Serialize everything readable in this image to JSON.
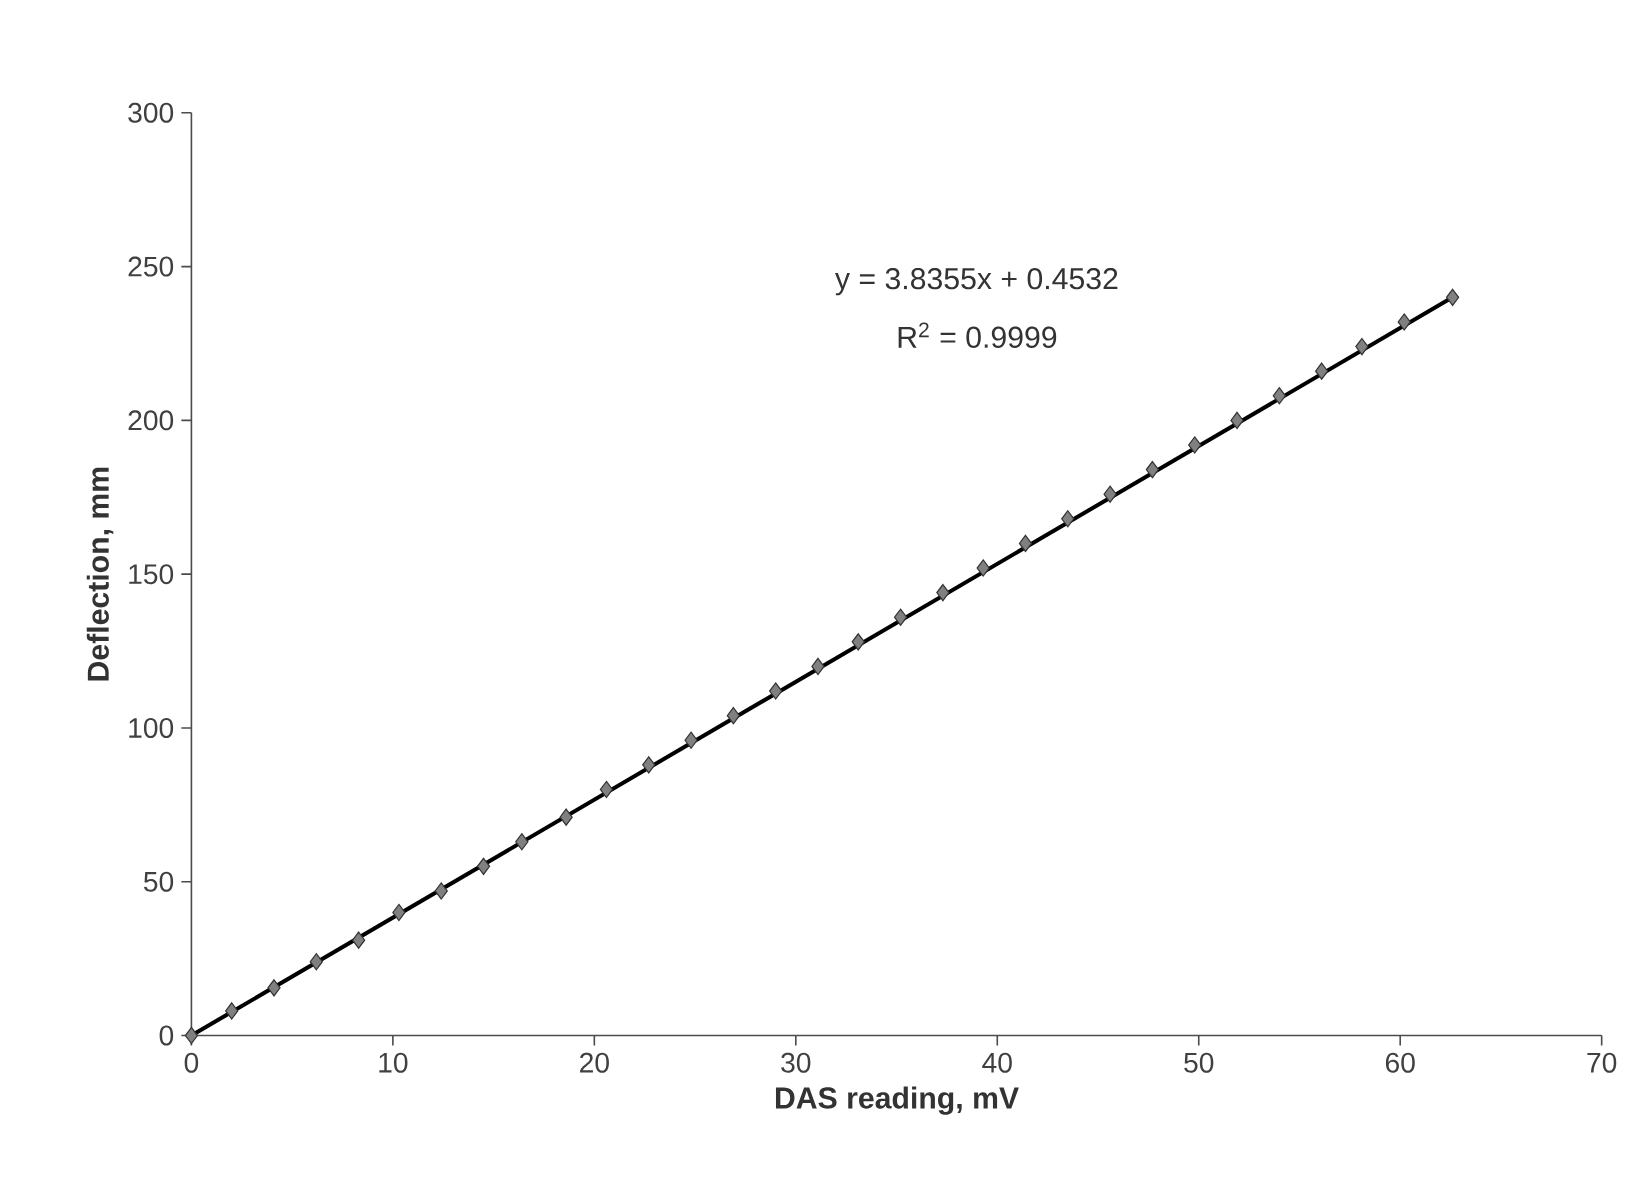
{
  "chart_data": {
    "type": "scatter",
    "xlabel": "DAS reading, mV",
    "ylabel": "Deflection, mm",
    "xlim": [
      0,
      70
    ],
    "ylim": [
      0,
      300
    ],
    "xticks": [
      0,
      10,
      20,
      30,
      40,
      50,
      60,
      70
    ],
    "yticks": [
      0,
      50,
      100,
      150,
      200,
      250,
      300
    ],
    "series": [
      {
        "marker": "diamond",
        "color": "#808080",
        "x": [
          0,
          2.0,
          4.1,
          6.2,
          8.3,
          10.3,
          12.4,
          14.5,
          16.4,
          18.6,
          20.6,
          22.7,
          24.8,
          26.9,
          29.0,
          31.1,
          33.1,
          35.2,
          37.3,
          39.3,
          41.4,
          43.5,
          45.6,
          47.7,
          49.8,
          51.9,
          54.0,
          56.1,
          58.1,
          60.2,
          62.6
        ],
        "values": [
          0,
          8,
          15.5,
          24,
          31,
          40,
          47,
          55,
          63,
          71,
          80,
          88,
          96,
          104,
          112,
          120,
          128,
          136,
          144,
          152,
          160,
          168,
          176,
          184,
          192,
          200,
          208,
          216,
          224,
          232,
          240
        ]
      },
      {
        "type": "line",
        "marker": "none",
        "line_style": "solid",
        "color": "#000000",
        "x": [
          0,
          62.6
        ],
        "values": [
          0,
          240
        ]
      }
    ],
    "annotations": [
      "y = 3.8355x + 0.4532",
      "R$^{2}$ = 0.9999"
    ]
  }
}
